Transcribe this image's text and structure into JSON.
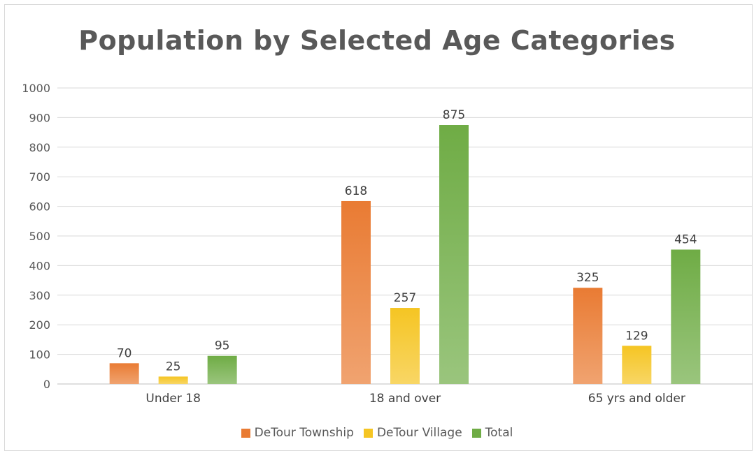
{
  "chart_data": {
    "type": "bar",
    "title": "Population by Selected Age Categories",
    "categories": [
      "Under 18",
      "18 and over",
      "65 yrs and older"
    ],
    "series": [
      {
        "name": "DeTour Township",
        "values": [
          70,
          618,
          325
        ],
        "color": "#e97b33"
      },
      {
        "name": "DeTour Village",
        "values": [
          25,
          257,
          129
        ],
        "color": "#f5c523"
      },
      {
        "name": "Total",
        "values": [
          95,
          875,
          454
        ],
        "color": "#6fac45"
      }
    ],
    "yticks": [
      "0",
      "100",
      "200",
      "300",
      "400",
      "500",
      "600",
      "700",
      "800",
      "900",
      "1000"
    ],
    "ylim": [
      0,
      1000
    ],
    "grid": true,
    "legend_position": "bottom"
  }
}
